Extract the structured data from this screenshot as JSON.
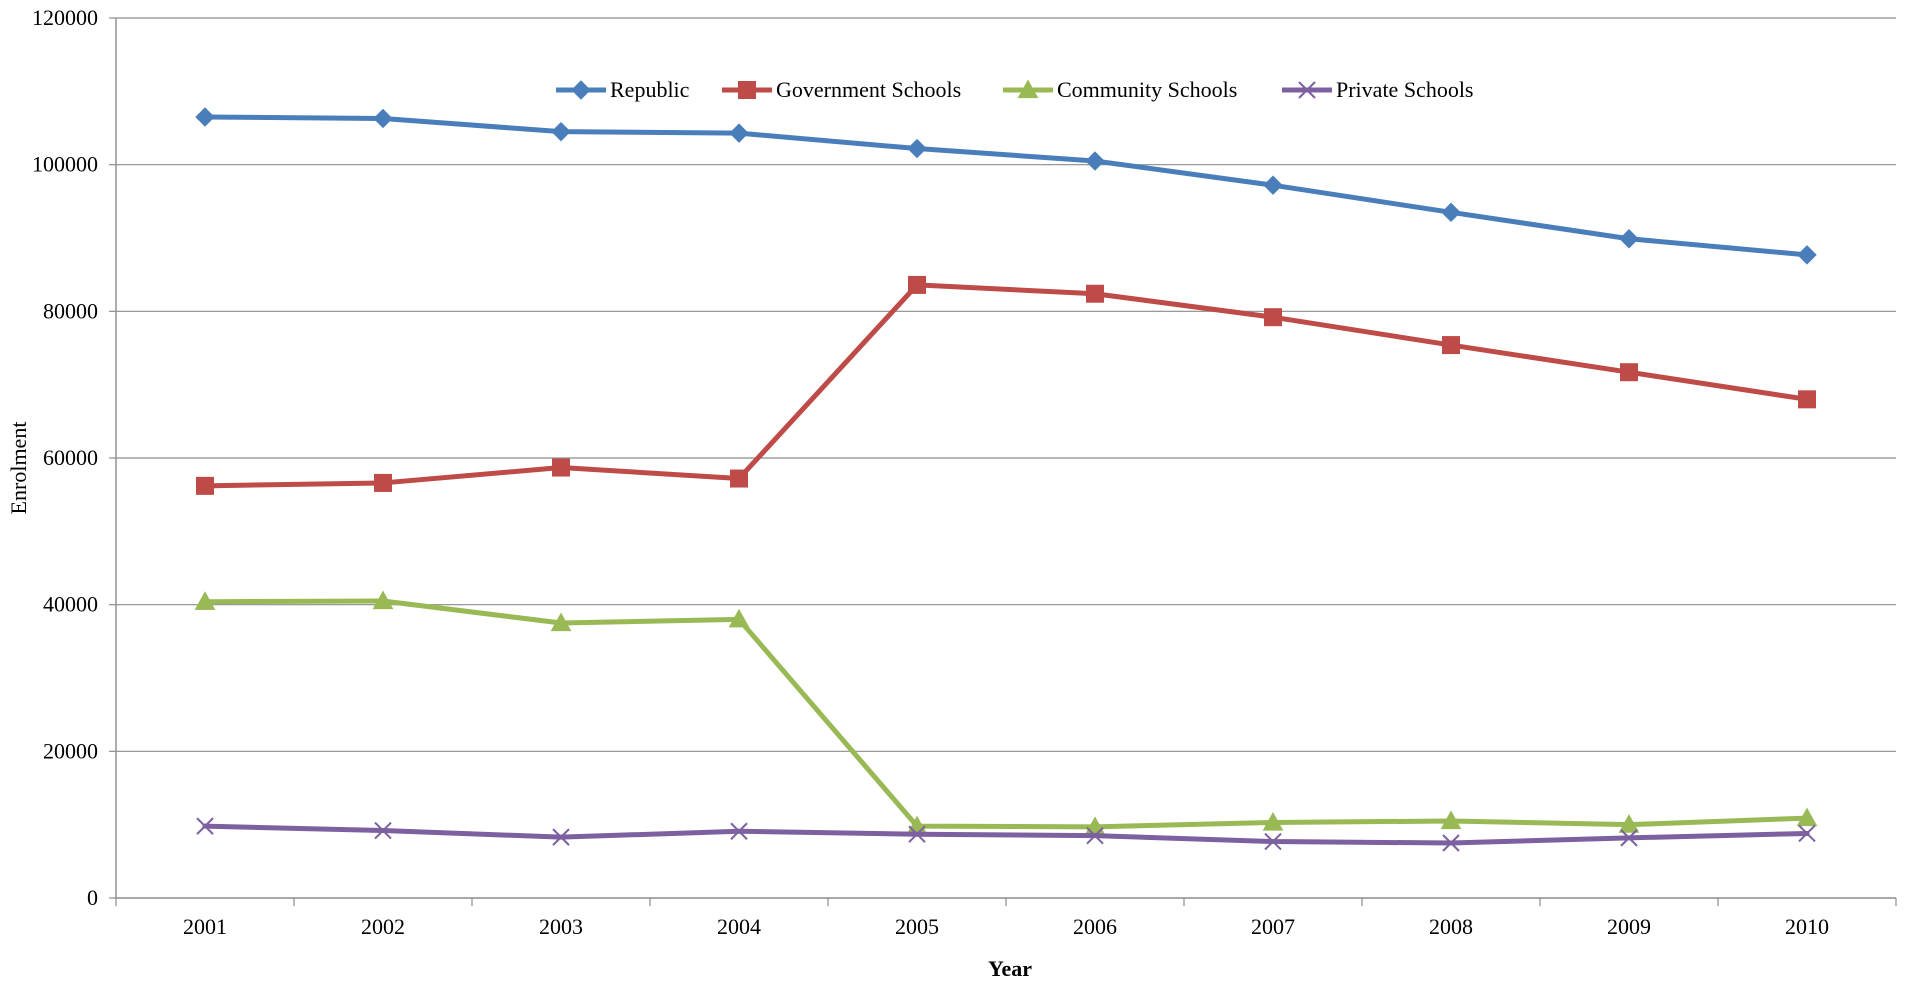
{
  "colors": {
    "republic": "#4a7ebb",
    "government": "#be4b48",
    "community": "#98b954",
    "private": "#7d60a0",
    "grid": "#8c8c8c",
    "axis": "#8c8c8c"
  },
  "chart_data": {
    "type": "line",
    "title": "",
    "xlabel": "Year",
    "ylabel": "Enrolment",
    "ylim": [
      0,
      120000
    ],
    "yticks": [
      "0",
      "20000",
      "40000",
      "60000",
      "80000",
      "100000",
      "120000"
    ],
    "grid": true,
    "legend_position": "top-center",
    "categories": [
      "2001",
      "2002",
      "2003",
      "2004",
      "2005",
      "2006",
      "2007",
      "2008",
      "2009",
      "2010"
    ],
    "series": [
      {
        "name": "Republic",
        "marker": "diamond",
        "color_key": "republic",
        "values": [
          106500,
          106300,
          104500,
          104300,
          102200,
          100500,
          97200,
          93500,
          89900,
          87700
        ]
      },
      {
        "name": "Government Schools",
        "marker": "square",
        "color_key": "government",
        "values": [
          56200,
          56600,
          58700,
          57200,
          83600,
          82400,
          79200,
          75400,
          71700,
          68000
        ]
      },
      {
        "name": "Community Schools",
        "marker": "triangle",
        "color_key": "community",
        "values": [
          40400,
          40500,
          37500,
          38000,
          9800,
          9700,
          10300,
          10500,
          10000,
          10900
        ]
      },
      {
        "name": "Private Schools",
        "marker": "x",
        "color_key": "private",
        "values": [
          9800,
          9200,
          8300,
          9100,
          8700,
          8500,
          7700,
          7500,
          8200,
          8800
        ]
      }
    ]
  }
}
